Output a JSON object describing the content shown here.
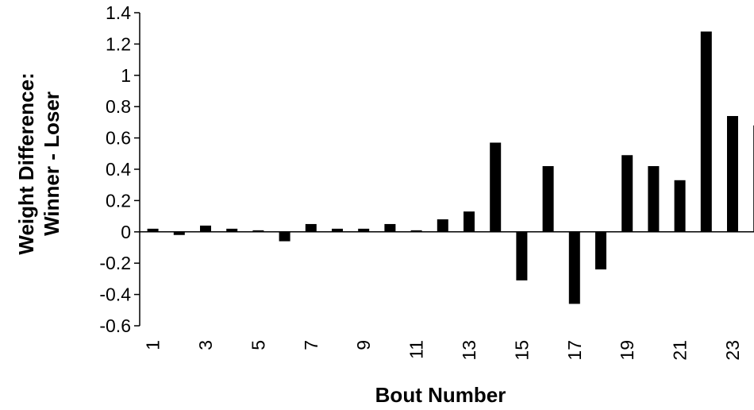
{
  "chart_data": {
    "type": "bar",
    "title": "",
    "xlabel": "Bout Number",
    "ylabel_line1": "Weight Difference:",
    "ylabel_line2": "Winner - Loser",
    "categories": [
      "1",
      "2",
      "3",
      "4",
      "5",
      "6",
      "7",
      "8",
      "9",
      "10",
      "11",
      "12",
      "13",
      "14",
      "15",
      "16",
      "17",
      "18",
      "19",
      "20",
      "21",
      "22",
      "23",
      "24"
    ],
    "x_tick_labels": [
      "1",
      "3",
      "5",
      "7",
      "9",
      "11",
      "13",
      "15",
      "17",
      "19",
      "21",
      "23"
    ],
    "values": [
      0.02,
      -0.02,
      0.04,
      0.02,
      0.01,
      -0.06,
      0.05,
      0.02,
      0.02,
      0.05,
      0.01,
      0.08,
      0.13,
      0.57,
      -0.31,
      0.42,
      -0.46,
      -0.24,
      0.49,
      0.42,
      0.33,
      1.28,
      0.74,
      0.68
    ],
    "ylim": [
      -0.6,
      1.4
    ],
    "y_ticks": [
      -0.6,
      -0.4,
      -0.2,
      0,
      0.2,
      0.4,
      0.6,
      0.8,
      1,
      1.2,
      1.4
    ],
    "y_tick_labels": [
      "-0.6",
      "-0.4",
      "-0.2",
      "0",
      "0.2",
      "0.4",
      "0.6",
      "0.8",
      "1",
      "1.2",
      "1.4"
    ],
    "bar_color": "#000000",
    "grid": false,
    "legend": "none"
  }
}
